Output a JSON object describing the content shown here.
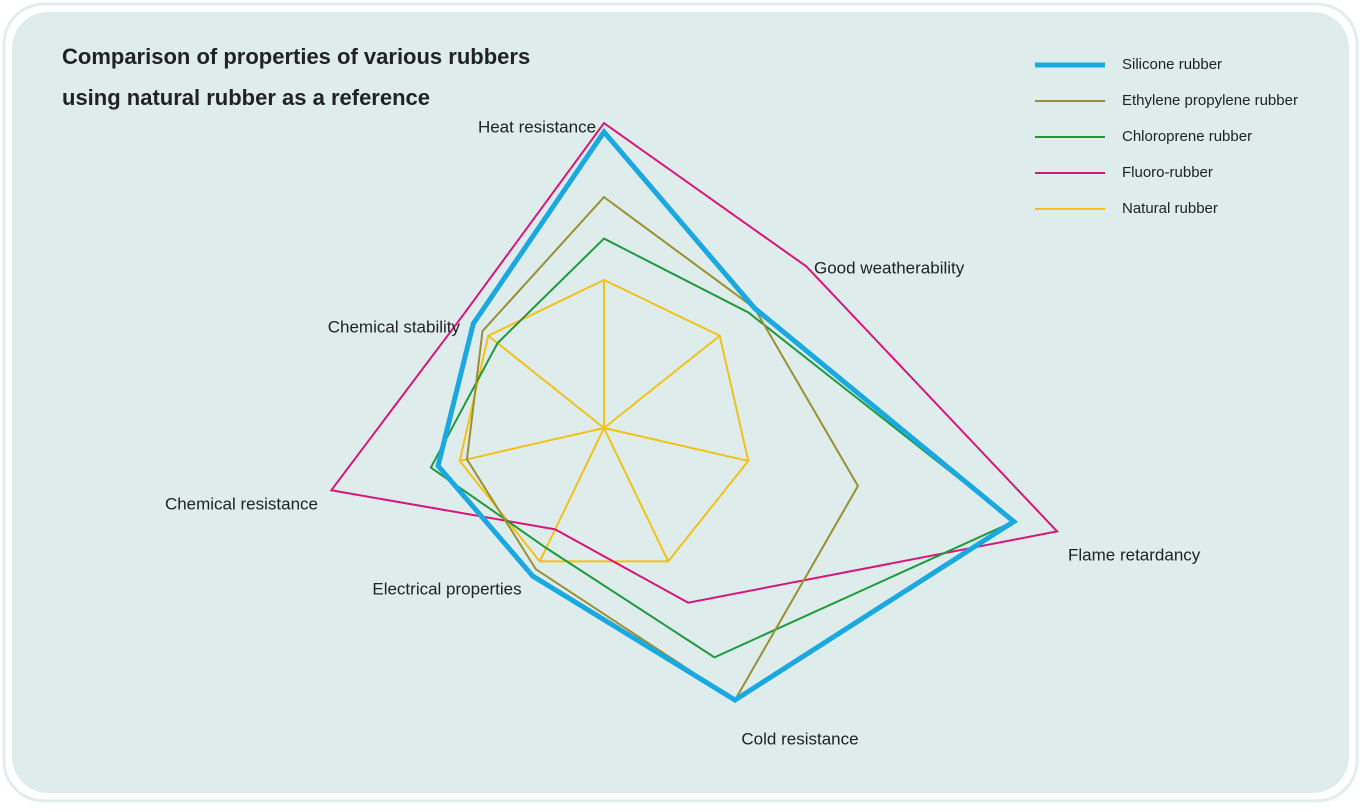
{
  "chart_data": {
    "type": "radar",
    "title": [
      "Comparison of properties of various rubbers",
      "using natural rubber as a reference"
    ],
    "categories": [
      "Heat resistance",
      "Good weatherability",
      "Flame retardancy",
      "Cold resistance",
      "Electrical properties",
      "Chemical resistance",
      "Chemical stability"
    ],
    "series": [
      {
        "name": "Silicone rubber",
        "color": "#1aa8e0",
        "values": [
          2.0,
          1.3,
          2.84,
          2.04,
          1.11,
          1.15,
          1.13
        ]
      },
      {
        "name": "Ethylene propylene rubber",
        "color": "#9a9032",
        "values": [
          1.56,
          1.3,
          1.76,
          2.04,
          1.06,
          0.95,
          1.05
        ]
      },
      {
        "name": "Chloroprene rubber",
        "color": "#1e9a3c",
        "values": [
          1.28,
          1.25,
          2.84,
          1.72,
          0.9,
          1.2,
          0.92
        ]
      },
      {
        "name": "Fluoro-rubber",
        "color": "#d6177a",
        "values": [
          2.06,
          1.75,
          3.14,
          1.31,
          0.76,
          1.89,
          1.22
        ]
      },
      {
        "name": "Natural rubber",
        "color": "#f2c218",
        "values": [
          1,
          1,
          1,
          1,
          1,
          1,
          1
        ]
      }
    ]
  }
}
